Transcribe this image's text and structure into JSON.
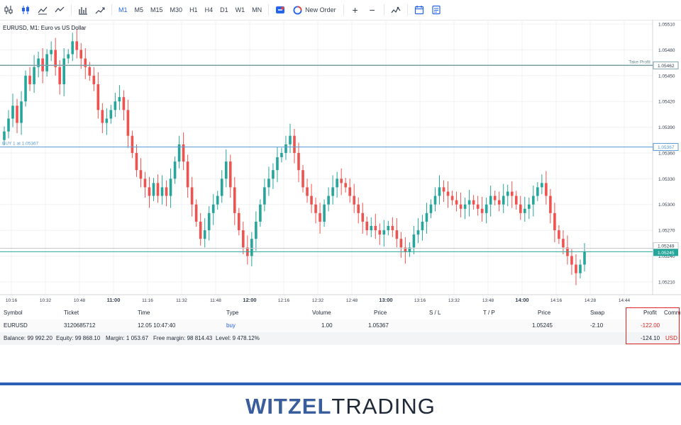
{
  "toolbar": {
    "timeframes": [
      "M1",
      "M5",
      "M15",
      "M30",
      "H1",
      "H4",
      "D1",
      "W1",
      "MN"
    ],
    "active_timeframe": "M1",
    "new_order_label": "New Order",
    "plus_label": "+",
    "minus_label": "−"
  },
  "chart": {
    "title": "EURUSD, M1: Euro vs US Dollar",
    "price_ticks": [
      "1.05510",
      "1.05480",
      "1.05450",
      "1.05420",
      "1.05390",
      "1.05360",
      "1.05330",
      "1.05300",
      "1.05270",
      "1.05240",
      "1.05210"
    ],
    "time_ticks": [
      "10:16",
      "10:32",
      "10:48",
      "11:00",
      "11:16",
      "11:32",
      "11:48",
      "12:00",
      "12:16",
      "12:32",
      "12:48",
      "13:00",
      "13:16",
      "13:32",
      "13:48",
      "14:00",
      "14:16",
      "14:28",
      "14:44"
    ],
    "bold_time_ticks": [
      "11:00",
      "12:00",
      "13:00",
      "14:00"
    ],
    "take_profit_label": "Take Profit",
    "take_profit_price": "1.05462",
    "buy_label": "BUY 1 at 1.05367",
    "buy_price": "1.05367",
    "ask_price": "1.05249",
    "bid_price": "1.05245",
    "colors": {
      "up": "#26a69a",
      "down": "#ef5350",
      "tp_line": "#7aa0a6",
      "buy_line": "#5b9bd5",
      "bid": "#26a69a"
    }
  },
  "chart_data": {
    "type": "candlestick",
    "title": "EURUSD, M1: Euro vs US Dollar",
    "ylim": [
      1.05195,
      1.05515
    ],
    "x_range": [
      "10:10",
      "14:52"
    ],
    "series": [
      {
        "name": "EURUSD",
        "close": [
          1.05385,
          1.054,
          1.05415,
          1.05395,
          1.0542,
          1.0545,
          1.0544,
          1.0546,
          1.0547,
          1.05455,
          1.05475,
          1.0548,
          1.0546,
          1.0544,
          1.0547,
          1.05475,
          1.0549,
          1.0548,
          1.0547,
          1.0546,
          1.0545,
          1.0544,
          1.0541,
          1.05395,
          1.054,
          1.0541,
          1.0542,
          1.05425,
          1.0541,
          1.0538,
          1.0536,
          1.0534,
          1.0533,
          1.0532,
          1.0531,
          1.05325,
          1.0531,
          1.0532,
          1.0531,
          1.0533,
          1.0535,
          1.0537,
          1.0535,
          1.0532,
          1.053,
          1.0528,
          1.0526,
          1.0527,
          1.0529,
          1.053,
          1.0531,
          1.0533,
          1.0535,
          1.0532,
          1.0529,
          1.0527,
          1.0525,
          1.0524,
          1.0526,
          1.0528,
          1.053,
          1.0532,
          1.0533,
          1.0534,
          1.05355,
          1.0536,
          1.0537,
          1.0538,
          1.0536,
          1.0534,
          1.0532,
          1.0531,
          1.053,
          1.0529,
          1.0528,
          1.053,
          1.0531,
          1.0532,
          1.0533,
          1.05325,
          1.0532,
          1.0531,
          1.053,
          1.0529,
          1.0528,
          1.0527,
          1.05275,
          1.0527,
          1.05265,
          1.0527,
          1.05275,
          1.0527,
          1.0526,
          1.0525,
          1.05245,
          1.0525,
          1.05265,
          1.0527,
          1.0528,
          1.0529,
          1.053,
          1.0531,
          1.0532,
          1.05315,
          1.0531,
          1.05305,
          1.053,
          1.05295,
          1.053,
          1.05305,
          1.053,
          1.05295,
          1.0529,
          1.053,
          1.0531,
          1.05305,
          1.053,
          1.0531,
          1.05315,
          1.0531,
          1.053,
          1.0529,
          1.05295,
          1.053,
          1.0531,
          1.0532,
          1.05325,
          1.0531,
          1.0529,
          1.0527,
          1.0526,
          1.0525,
          1.0524,
          1.0523,
          1.0522,
          1.0523,
          1.05245
        ]
      }
    ]
  },
  "positions": {
    "columns": [
      "Symbol",
      "Ticket",
      "Time",
      "Type",
      "Volume",
      "Price",
      "S / L",
      "T / P",
      "Price",
      "Swap",
      "Profit",
      "Comm"
    ],
    "rows": [
      {
        "symbol": "EURUSD",
        "ticket": "3120685712",
        "time": "12.05 10:47:40",
        "type": "buy",
        "volume": "1.00",
        "price": "1.05367",
        "sl": "",
        "tp": "",
        "current_price": "1.05245",
        "swap": "-2.10",
        "profit": "-122.00"
      }
    ],
    "summary": {
      "balance": "Balance: 99 992.20",
      "equity": "Equity: 99 868.10",
      "margin": "Margin: 1 053.67",
      "free_margin": "Free margin: 98 814.43",
      "level": "Level: 9 478.12%",
      "total_profit": "-124.10",
      "currency": "USD"
    }
  },
  "footer": {
    "brand_strong": "WITZEL",
    "brand_light": "TRADING",
    "accent": "#2b5fb5"
  }
}
